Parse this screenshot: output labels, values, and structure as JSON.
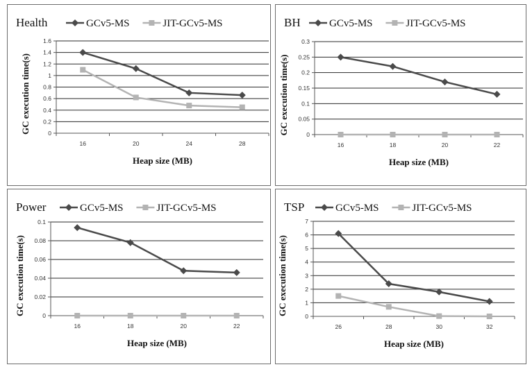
{
  "chart_data": [
    {
      "type": "line",
      "title": "Health",
      "xlabel": "Heap size (MB)",
      "ylabel": "GC execution time(s)",
      "categories": [
        "16",
        "20",
        "24",
        "28"
      ],
      "yticks": [
        "0",
        "0.2",
        "0.4",
        "0.6",
        "0.8",
        "1",
        "1.2",
        "1.4",
        "1.6"
      ],
      "ylim": [
        0,
        1.6
      ],
      "legend_position": "top",
      "grid": true,
      "series": [
        {
          "name": "GCv5-MS",
          "color": "#4a4a4a",
          "marker": "diamond",
          "values": [
            1.4,
            1.12,
            0.7,
            0.66
          ]
        },
        {
          "name": "JIT-GCv5-MS",
          "color": "#b3b3b3",
          "marker": "square",
          "values": [
            1.1,
            0.62,
            0.48,
            0.45
          ]
        }
      ]
    },
    {
      "type": "line",
      "title": "BH",
      "xlabel": "Heap size (MB)",
      "ylabel": "GC execution time(s)",
      "categories": [
        "16",
        "18",
        "20",
        "22"
      ],
      "yticks": [
        "0",
        "0.05",
        "0.1",
        "0.15",
        "0.2",
        "0.25",
        "0.3"
      ],
      "ylim": [
        0,
        0.3
      ],
      "legend_position": "top",
      "grid": true,
      "series": [
        {
          "name": "GCv5-MS",
          "color": "#4a4a4a",
          "marker": "diamond",
          "values": [
            0.25,
            0.22,
            0.17,
            0.13
          ]
        },
        {
          "name": "JIT-GCv5-MS",
          "color": "#b3b3b3",
          "marker": "square",
          "values": [
            0,
            0,
            0,
            0
          ]
        }
      ]
    },
    {
      "type": "line",
      "title": "Power",
      "xlabel": "Heap size (MB)",
      "ylabel": "GC execution time(s)",
      "categories": [
        "16",
        "18",
        "20",
        "22"
      ],
      "yticks": [
        "0",
        "0.02",
        "0.04",
        "0.06",
        "0.08",
        "0.1"
      ],
      "ylim": [
        0,
        0.1
      ],
      "legend_position": "top",
      "grid": true,
      "series": [
        {
          "name": "GCv5-MS",
          "color": "#4a4a4a",
          "marker": "diamond",
          "values": [
            0.094,
            0.078,
            0.048,
            0.046
          ]
        },
        {
          "name": "JIT-GCv5-MS",
          "color": "#b3b3b3",
          "marker": "square",
          "values": [
            0,
            0,
            0,
            0
          ]
        }
      ]
    },
    {
      "type": "line",
      "title": "TSP",
      "xlabel": "Heap size (MB)",
      "ylabel": "GC execution time(s)",
      "categories": [
        "26",
        "28",
        "30",
        "32"
      ],
      "yticks": [
        "0",
        "1",
        "2",
        "3",
        "4",
        "5",
        "6",
        "7"
      ],
      "ylim": [
        0,
        7
      ],
      "legend_position": "top",
      "grid": true,
      "series": [
        {
          "name": "GCv5-MS",
          "color": "#4a4a4a",
          "marker": "diamond",
          "values": [
            6.1,
            2.4,
            1.8,
            1.1
          ]
        },
        {
          "name": "JIT-GCv5-MS",
          "color": "#b3b3b3",
          "marker": "square",
          "values": [
            1.5,
            0.7,
            0.02,
            0
          ]
        }
      ]
    }
  ]
}
